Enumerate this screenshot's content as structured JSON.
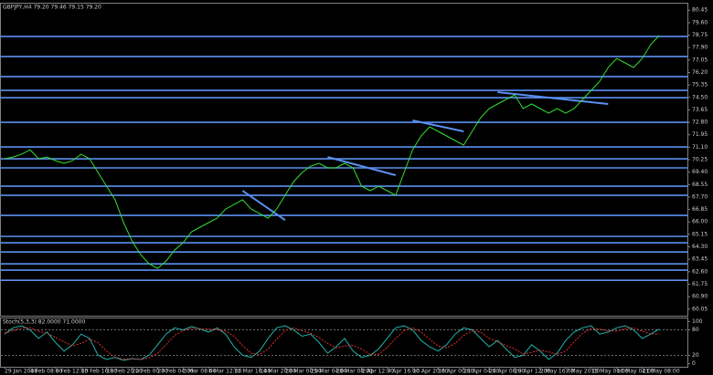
{
  "chart_data": [
    {
      "type": "line",
      "title": "GBPJPY,H4 79.20 79.46 79.15 79.20",
      "categories": [
        "29 Jan 2008",
        null,
        null,
        "4 Feb 08:00",
        null,
        null,
        "8 Feb 12:00",
        null,
        null,
        "13 Feb 16:00",
        null,
        null,
        "18 Feb 20:00",
        null,
        null,
        "22 Feb 00:00",
        null,
        null,
        "27 Feb 04:00",
        null,
        null,
        "3 Mar 08:00",
        null,
        null,
        "6 Mar 12:00",
        null,
        null,
        "11 Mar 16:00",
        null,
        null,
        "14 Mar 20:00",
        null,
        null,
        "20 Mar 00:00",
        null,
        null,
        "25 Mar 04:00",
        null,
        null,
        "28 Mar 08:00",
        null,
        null,
        "2 Apr 12:00",
        null,
        null,
        "7 Apr 16:00",
        null,
        null,
        "10 Apr 20:00",
        null,
        null,
        "16 Apr 00:00",
        null,
        null,
        "21 Apr 04:00",
        null,
        null,
        "24 Apr 08:00",
        null,
        null,
        "29 Apr 12:00",
        null,
        null,
        "2 May 16:00",
        null,
        null,
        "7 May 20:00",
        null,
        null,
        "13 May 00:00",
        null,
        null,
        "16 May 04:00",
        null,
        null,
        "21 May 08:00",
        null,
        null
      ],
      "series": [
        {
          "color": "#33dd33",
          "values": [
            70.31,
            70.43,
            70.62,
            70.93,
            70.31,
            70.43,
            70.18,
            70.0,
            70.18,
            70.62,
            70.31,
            69.37,
            68.44,
            67.51,
            65.95,
            64.7,
            63.77,
            63.14,
            62.83,
            63.33,
            64.08,
            64.58,
            65.33,
            65.64,
            65.95,
            66.26,
            66.88,
            67.19,
            67.51,
            66.88,
            66.57,
            66.26,
            66.88,
            67.82,
            68.75,
            69.37,
            69.81,
            70.0,
            69.69,
            69.69,
            70.0,
            69.69,
            68.44,
            68.13,
            68.44,
            68.13,
            67.82,
            69.37,
            70.93,
            71.87,
            72.49,
            72.18,
            71.87,
            71.56,
            71.24,
            72.18,
            73.11,
            73.74,
            74.05,
            74.36,
            74.67,
            73.74,
            74.05,
            73.74,
            73.42,
            73.74,
            73.42,
            73.74,
            74.36,
            74.98,
            75.6,
            76.54,
            77.16,
            76.85,
            76.54,
            77.16,
            78.1,
            78.72
          ]
        }
      ],
      "levels": [
        78.66,
        77.29,
        75.92,
        74.98,
        74.48,
        72.8,
        71.12,
        70.31,
        69.69,
        68.44,
        67.82,
        66.45,
        65.01,
        64.58,
        63.95,
        63.14,
        62.71,
        62.02
      ],
      "level_color": "#5b8ff0",
      "trendlines": [
        {
          "x": [
            28,
            33
          ],
          "values": [
            68.13,
            66.13
          ]
        },
        {
          "x": [
            38,
            46
          ],
          "values": [
            70.43,
            69.19
          ]
        },
        {
          "x": [
            48,
            54
          ],
          "values": [
            72.93,
            72.18
          ]
        },
        {
          "x": [
            58,
            71
          ],
          "values": [
            74.86,
            74.05
          ]
        }
      ],
      "ylim": [
        59.6,
        80.9
      ],
      "yticks": [
        80.45,
        {
          "value": 79.6,
          "label": "79.60"
        },
        78.75,
        {
          "value": 77.9,
          "label": "77.90"
        },
        77.05,
        {
          "value": 76.2,
          "label": "76.20"
        },
        75.35,
        {
          "value": 74.5,
          "label": "74.50"
        },
        73.65,
        {
          "value": 72.8,
          "label": "72.80"
        },
        71.95,
        {
          "value": 71.1,
          "label": "71.10"
        },
        70.25,
        {
          "value": 69.4,
          "label": "69.40"
        },
        68.55,
        {
          "value": 67.7,
          "label": "67.70"
        },
        66.85,
        {
          "value": 66,
          "label": "66.00"
        },
        65.15,
        {
          "value": 64.3,
          "label": "64.30"
        },
        63.45,
        {
          "value": 62.6,
          "label": "62.60"
        },
        61.75,
        {
          "value": 60.9,
          "label": "60.90"
        },
        60.05
      ]
    },
    {
      "type": "line",
      "title": "Stoch(5,3,3) 82.0000 71.0000",
      "series": [
        {
          "color": "#20b2aa",
          "values": [
            70,
            85,
            90,
            80,
            60,
            75,
            50,
            30,
            45,
            70,
            60,
            20,
            10,
            15,
            8,
            12,
            10,
            20,
            45,
            70,
            85,
            80,
            88,
            82,
            75,
            85,
            70,
            40,
            20,
            15,
            30,
            60,
            85,
            90,
            80,
            65,
            70,
            50,
            25,
            40,
            60,
            30,
            15,
            20,
            35,
            60,
            85,
            90,
            80,
            55,
            40,
            30,
            45,
            70,
            85,
            80,
            60,
            40,
            55,
            35,
            15,
            20,
            45,
            30,
            10,
            25,
            55,
            75,
            85,
            90,
            70,
            75,
            85,
            90,
            80,
            60,
            70,
            82
          ]
        },
        {
          "color": "#e03030",
          "dashed": true,
          "values": [
            72,
            78,
            85,
            85,
            77,
            72,
            62,
            52,
            42,
            48,
            58,
            50,
            30,
            15,
            11,
            12,
            10,
            14,
            25,
            45,
            67,
            78,
            84,
            83,
            82,
            81,
            77,
            65,
            43,
            25,
            22,
            35,
            58,
            78,
            85,
            78,
            72,
            62,
            48,
            38,
            42,
            43,
            35,
            22,
            23,
            38,
            60,
            78,
            85,
            75,
            58,
            42,
            38,
            48,
            67,
            78,
            75,
            60,
            52,
            43,
            35,
            23,
            27,
            32,
            28,
            22,
            30,
            52,
            72,
            83,
            82,
            78,
            77,
            83,
            85,
            77,
            70,
            71
          ]
        }
      ],
      "levels": [
        80,
        20
      ],
      "ylim": [
        -5,
        105
      ],
      "yticks": [
        100,
        80,
        20,
        0
      ]
    }
  ]
}
